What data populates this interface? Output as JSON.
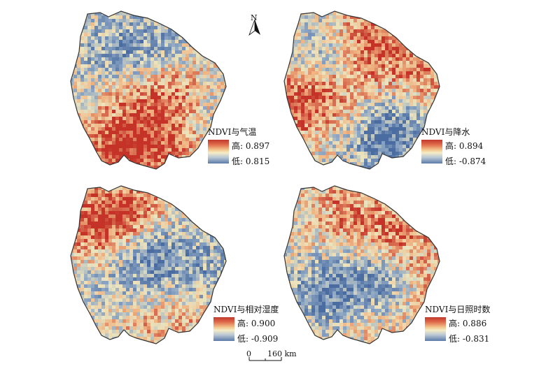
{
  "north": {
    "label": "N",
    "icon": "north-arrow-icon"
  },
  "scale": {
    "zero": "0",
    "label": "160 km"
  },
  "panels": [
    {
      "id": "temperature",
      "title": "NDVI与气温",
      "high": "高: 0.897",
      "low": "低: 0.815"
    },
    {
      "id": "precipitation",
      "title": "NDVI与降水",
      "high": "高: 0.894",
      "low": "低: -0.874"
    },
    {
      "id": "humidity",
      "title": "NDVI与相对湿度",
      "high": "高: 0.900",
      "low": "低: -0.909"
    },
    {
      "id": "sunshine",
      "title": "NDVI与日照时数",
      "high": "高: 0.886",
      "low": "低: -0.831"
    }
  ],
  "colors": {
    "high": "#c0392b",
    "mid": "#f4ecc6",
    "low": "#5a7ba8",
    "outline": "#333333"
  }
}
